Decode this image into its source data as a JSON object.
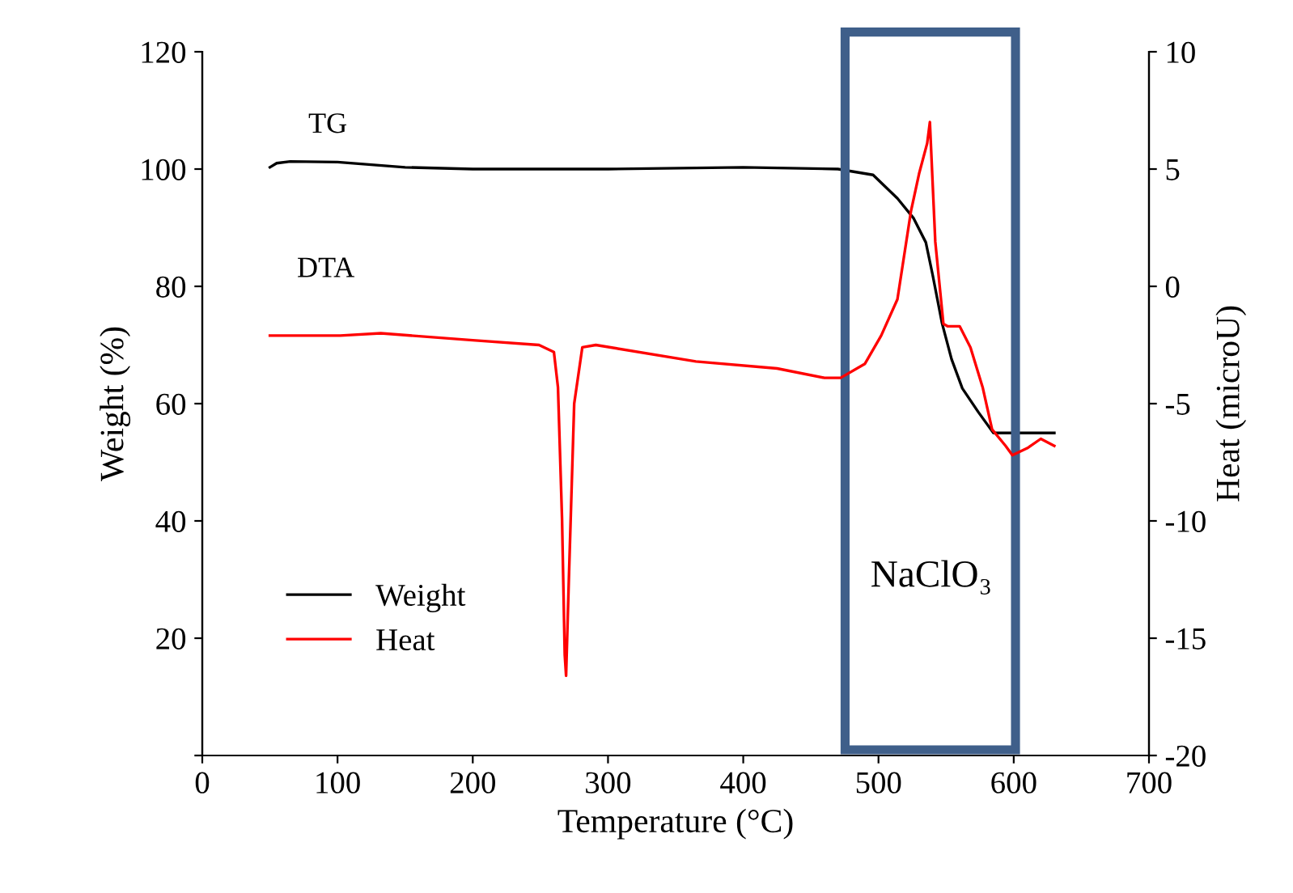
{
  "chart_data": {
    "type": "line",
    "xlabel": "Temperature (°C)",
    "ylabel": "Weight (%)",
    "y2label": "Heat (microU)",
    "xlim": [
      0,
      700
    ],
    "xticks": [
      0,
      100,
      200,
      300,
      400,
      500,
      600,
      700
    ],
    "ylim": [
      0,
      120
    ],
    "yticks": [
      {
        "value": 0,
        "label": null
      },
      20,
      40,
      60,
      80,
      100,
      120
    ],
    "y2lim": [
      -20,
      10
    ],
    "y2ticks": [
      -20,
      -15,
      -10,
      -5,
      0,
      5,
      10
    ],
    "legend": "bottom left",
    "grid": false,
    "annotations": [
      "TG",
      "DTA",
      "NaClO₃"
    ],
    "series": [
      {
        "name": "Weight",
        "color": "#000000",
        "x": [
          50,
          55,
          65,
          100,
          150,
          200,
          300,
          400,
          470,
          496,
          514,
          526,
          535,
          540,
          547,
          554,
          562,
          574,
          585,
          600,
          630
        ],
        "values": [
          100.3,
          101,
          101.3,
          101.2,
          100.3,
          100,
          100,
          100.3,
          100,
          99,
          95,
          91.6,
          87.5,
          82,
          73.7,
          67.6,
          62.6,
          58.5,
          55,
          55,
          55
        ]
      },
      {
        "name": "Heat",
        "color": "#ff0000",
        "axis": "y2",
        "x": [
          50,
          102,
          132,
          200,
          249,
          260,
          263,
          266,
          268,
          269,
          271,
          275,
          281,
          291,
          365,
          425,
          460,
          472,
          490,
          502,
          514,
          524,
          530,
          536,
          538,
          542,
          548,
          551,
          560,
          568,
          577,
          584,
          594,
          599,
          610,
          620,
          630
        ],
        "values": [
          -2.1,
          -2.1,
          -2,
          -2.3,
          -2.5,
          -2.8,
          -4.3,
          -9.9,
          -15.7,
          -16.6,
          -12.6,
          -5,
          -2.6,
          -2.5,
          -3.2,
          -3.5,
          -3.9,
          -3.9,
          -3.3,
          -2.1,
          -0.55,
          3.2,
          4.8,
          6.1,
          7,
          1.9,
          -1.6,
          -1.7,
          -1.7,
          -2.6,
          -4.3,
          -6.1,
          -6.8,
          -7.2,
          -6.9,
          -6.5,
          -6.8
        ]
      }
    ]
  }
}
